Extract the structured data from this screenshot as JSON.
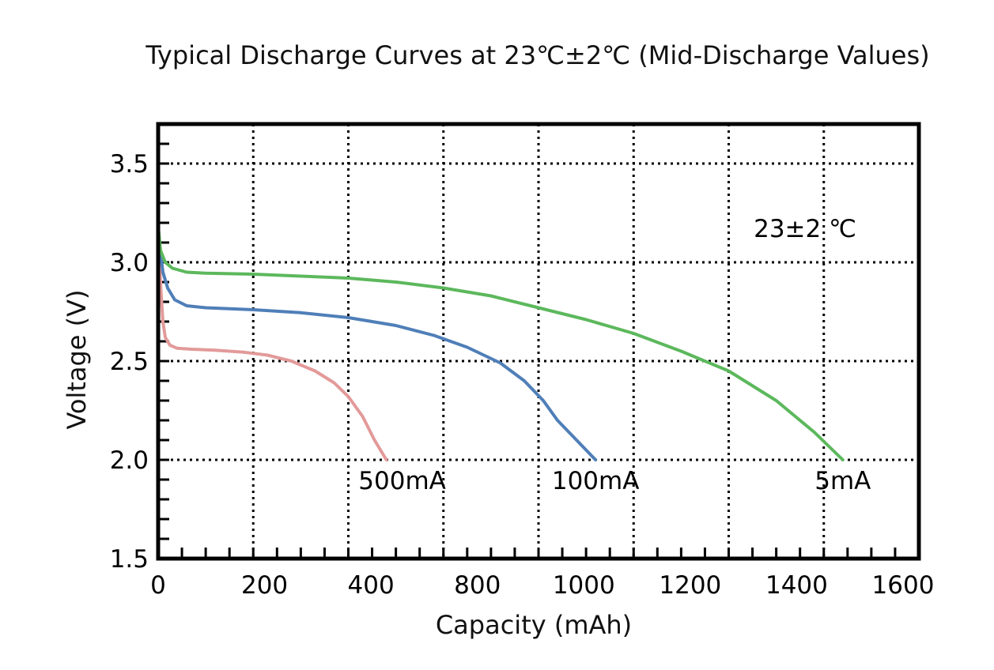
{
  "chart_data": {
    "type": "line",
    "title": "Typical Discharge Curves at 23℃±2℃ (Mid-Discharge Values)",
    "xlabel": "Capacity (mAh)",
    "ylabel": "Voltage (V)",
    "xlim": [
      0,
      1600
    ],
    "ylim": [
      1.5,
      3.7
    ],
    "grid": true,
    "x_tick_labels": [
      "0",
      "200",
      "400",
      "800",
      "1000",
      "1200",
      "1400",
      "1600"
    ],
    "y_ticks": [
      {
        "value": 1.5,
        "label": "1.5"
      },
      {
        "value": 2.0,
        "label": "2.0"
      },
      {
        "value": 2.5,
        "label": "2.5"
      },
      {
        "value": 3.0,
        "label": "3.0"
      },
      {
        "value": 3.5,
        "label": "3.5"
      }
    ],
    "annotation": "23±2 ℃",
    "series": [
      {
        "name": "500mA",
        "color": "#e39a9a",
        "points": [
          [
            0,
            3.18
          ],
          [
            3,
            3.0
          ],
          [
            6,
            2.85
          ],
          [
            10,
            2.7
          ],
          [
            15,
            2.62
          ],
          [
            25,
            2.58
          ],
          [
            40,
            2.565
          ],
          [
            70,
            2.56
          ],
          [
            120,
            2.555
          ],
          [
            180,
            2.545
          ],
          [
            230,
            2.53
          ],
          [
            280,
            2.5
          ],
          [
            330,
            2.45
          ],
          [
            370,
            2.39
          ],
          [
            400,
            2.32
          ],
          [
            430,
            2.22
          ],
          [
            455,
            2.1
          ],
          [
            480,
            2.0
          ]
        ]
      },
      {
        "name": "100mA",
        "color": "#4f7fb8",
        "points": [
          [
            0,
            3.18
          ],
          [
            5,
            3.05
          ],
          [
            10,
            2.95
          ],
          [
            20,
            2.87
          ],
          [
            35,
            2.81
          ],
          [
            60,
            2.78
          ],
          [
            100,
            2.77
          ],
          [
            200,
            2.76
          ],
          [
            300,
            2.745
          ],
          [
            400,
            2.72
          ],
          [
            500,
            2.68
          ],
          [
            580,
            2.63
          ],
          [
            650,
            2.57
          ],
          [
            720,
            2.49
          ],
          [
            770,
            2.4
          ],
          [
            810,
            2.3
          ],
          [
            840,
            2.2
          ],
          [
            880,
            2.1
          ],
          [
            920,
            2.0
          ]
        ]
      },
      {
        "name": "5mA",
        "color": "#5cb85c",
        "points": [
          [
            0,
            3.18
          ],
          [
            5,
            3.06
          ],
          [
            15,
            3.0
          ],
          [
            30,
            2.97
          ],
          [
            60,
            2.95
          ],
          [
            100,
            2.945
          ],
          [
            200,
            2.94
          ],
          [
            300,
            2.93
          ],
          [
            400,
            2.92
          ],
          [
            500,
            2.9
          ],
          [
            600,
            2.87
          ],
          [
            700,
            2.83
          ],
          [
            800,
            2.77
          ],
          [
            900,
            2.71
          ],
          [
            1000,
            2.64
          ],
          [
            1100,
            2.55
          ],
          [
            1200,
            2.45
          ],
          [
            1300,
            2.3
          ],
          [
            1380,
            2.14
          ],
          [
            1440,
            2.0
          ]
        ]
      }
    ]
  }
}
